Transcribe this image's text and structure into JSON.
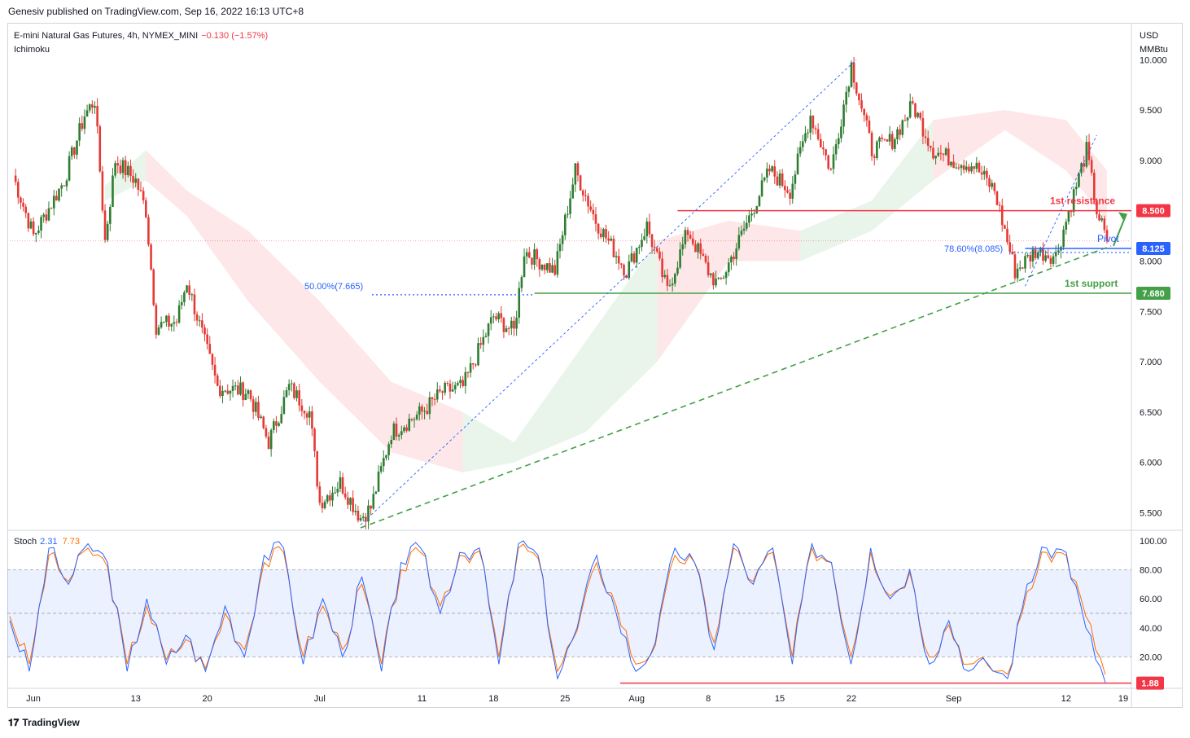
{
  "header": {
    "published": "Genesiv published on TradingView.com, Sep 16, 2022 16:13 UTC+8"
  },
  "legend": {
    "symbol": "E-mini Natural Gas Futures, 4h, NYMEX_MINI",
    "change": "−0.130 (−1.57%)",
    "indicator": "Ichimoku"
  },
  "stoch_legend": {
    "label": "Stoch",
    "k": "2.31",
    "d": "7.73"
  },
  "axis_unit": {
    "currency": "USD",
    "unit": "MMBtu"
  },
  "footer": {
    "brand": "TradingView"
  },
  "colors": {
    "up": "#26a69a",
    "up_candle": "#2e7d32",
    "down": "#e53935",
    "resistance": "#f23645",
    "support": "#43a047",
    "pivot": "#2962ff",
    "stoch_k": "#2962ff",
    "stoch_d": "#ff6d00"
  },
  "chart_data": {
    "type": "candlestick",
    "title": "E-mini Natural Gas Futures, 4h, NYMEX_MINI",
    "price_axis": {
      "ticks": [
        "10.000",
        "9.500",
        "9.000",
        "8.000",
        "7.500",
        "7.000",
        "6.500",
        "6.000",
        "5.500"
      ],
      "ylim": [
        5.35,
        10.35
      ]
    },
    "time_axis": {
      "ticks": [
        "Jun",
        "13",
        "20",
        "Jul",
        "11",
        "18",
        "25",
        "Aug",
        "8",
        "15",
        "22",
        "Sep",
        "12",
        "19"
      ]
    },
    "close_path": [
      [
        "Jun 1",
        8.85
      ],
      [
        "Jun 3",
        8.25
      ],
      [
        "Jun 6",
        8.8
      ],
      [
        "Jun 8",
        9.45
      ],
      [
        "Jun 9",
        9.6
      ],
      [
        "Jun 10",
        8.2
      ],
      [
        "Jun 11",
        9.0
      ],
      [
        "Jun 13",
        8.8
      ],
      [
        "Jun 14",
        8.5
      ],
      [
        "Jun 15",
        7.35
      ],
      [
        "Jun 17",
        7.4
      ],
      [
        "Jun 18",
        7.8
      ],
      [
        "Jun 20",
        7.1
      ],
      [
        "Jun 21",
        6.75
      ],
      [
        "Jun 24",
        6.7
      ],
      [
        "Jun 26",
        6.2
      ],
      [
        "Jun 28",
        6.75
      ],
      [
        "Jun 30",
        6.5
      ],
      [
        "Jul 1",
        5.6
      ],
      [
        "Jul 3",
        5.8
      ],
      [
        "Jul 5",
        5.45
      ],
      [
        "Jul 6",
        5.55
      ],
      [
        "Jul 8",
        6.3
      ],
      [
        "Jul 11",
        6.5
      ],
      [
        "Jul 13",
        6.7
      ],
      [
        "Jul 15",
        6.75
      ],
      [
        "Jul 18",
        7.45
      ],
      [
        "Jul 20",
        7.3
      ],
      [
        "Jul 21",
        8.1
      ],
      [
        "Jul 24",
        7.9
      ],
      [
        "Jul 26",
        8.9
      ],
      [
        "Jul 28",
        8.4
      ],
      [
        "Jul 31",
        7.9
      ],
      [
        "Aug 2",
        8.35
      ],
      [
        "Aug 4",
        7.7
      ],
      [
        "Aug 6",
        8.3
      ],
      [
        "Aug 8",
        7.9
      ],
      [
        "Aug 9",
        7.75
      ],
      [
        "Aug 11",
        8.2
      ],
      [
        "Aug 14",
        8.9
      ],
      [
        "Aug 16",
        8.7
      ],
      [
        "Aug 18",
        9.45
      ],
      [
        "Aug 20",
        8.9
      ],
      [
        "Aug 22",
        9.95
      ],
      [
        "Aug 24",
        9.1
      ],
      [
        "Aug 26",
        9.2
      ],
      [
        "Aug 28",
        9.55
      ],
      [
        "Aug 30",
        9.1
      ],
      [
        "Sep 1",
        9.0
      ],
      [
        "Sep 3",
        8.95
      ],
      [
        "Sep 5",
        8.7
      ],
      [
        "Sep 7",
        7.9
      ],
      [
        "Sep 9",
        8.1
      ],
      [
        "Sep 11",
        8.05
      ],
      [
        "Sep 12",
        8.4
      ],
      [
        "Sep 14",
        9.1
      ],
      [
        "Sep 15",
        8.5
      ],
      [
        "Sep 16",
        8.2
      ]
    ],
    "levels": [
      {
        "name": "1st resistance",
        "value": 8.5,
        "tag": "8.500"
      },
      {
        "name": "Pivot",
        "value": 8.125,
        "tag": "8.125"
      },
      {
        "name": "1st support",
        "value": 7.68,
        "tag": "7.680"
      }
    ],
    "fib_labels": [
      "50.00%(7.665)",
      "78.60%(8.085)"
    ],
    "stochastic": {
      "axis_ticks": [
        "100.00",
        "80.00",
        "60.00",
        "40.00",
        "20.00"
      ],
      "ylim": [
        0,
        105
      ],
      "overbought": 80,
      "mid": 50,
      "oversold": 20,
      "k": [
        45,
        10,
        95,
        70,
        98,
        85,
        10,
        60,
        15,
        35,
        10,
        55,
        20,
        90,
        95,
        15,
        60,
        20,
        75,
        10,
        85,
        95,
        50,
        92,
        95,
        15,
        98,
        90,
        5,
        40,
        90,
        50,
        10,
        30,
        95,
        85,
        25,
        98,
        70,
        95,
        15,
        98,
        85,
        15,
        95,
        60,
        80,
        15,
        45,
        10,
        15,
        5,
        70,
        95,
        92,
        40,
        2.31
      ],
      "d": [
        48,
        15,
        90,
        72,
        95,
        82,
        15,
        55,
        18,
        32,
        12,
        50,
        25,
        85,
        92,
        20,
        55,
        25,
        70,
        15,
        80,
        92,
        55,
        90,
        93,
        20,
        95,
        88,
        10,
        38,
        85,
        55,
        15,
        28,
        90,
        85,
        30,
        95,
        72,
        92,
        20,
        95,
        85,
        20,
        92,
        62,
        78,
        20,
        42,
        15,
        14,
        8,
        65,
        92,
        90,
        48,
        7.73
      ],
      "support_line": 1.88,
      "support_tag": "1.88"
    }
  }
}
